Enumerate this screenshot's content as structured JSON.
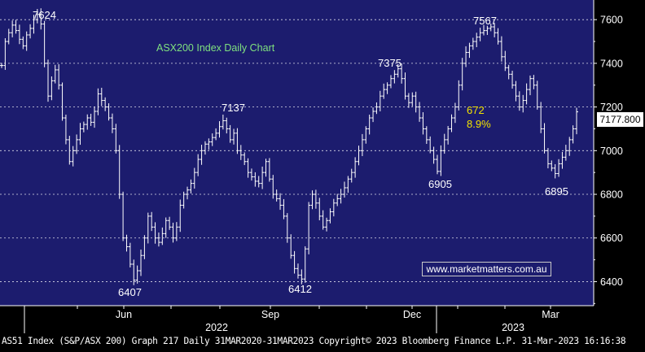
{
  "colors": {
    "plot_background": "#1c1c6e",
    "axis_background": "#000000",
    "grid": "#ffffff",
    "price_bars": "#ffffff",
    "title_text": "#7fe07f",
    "move_annotation": "#f2e200",
    "last_price_bg": "#ffffff"
  },
  "footer": {
    "text": "AS51 Index (S&P/ASX 200) Graph 217  Daily 31MAR2020-31MAR2023 Copyright© 2023 Bloomberg Finance L.P. 31-Mar-2023 16:16:38"
  },
  "watermark": "www.marketmatters.com.au",
  "chart_data": {
    "type": "ohlc",
    "title": "ASX200 Index Daily Chart",
    "y_axis": {
      "position": "right",
      "ticks": [
        6400,
        6600,
        6800,
        7000,
        7200,
        7400,
        7600
      ],
      "ylim": [
        6290,
        7690
      ],
      "grid": "dashed horizontal"
    },
    "x_axis": {
      "month_ticks": [
        "Jun",
        "Sep",
        "Dec",
        "Mar"
      ],
      "year_labels": [
        "2022",
        "2023"
      ]
    },
    "last_price_label": "7177.800",
    "last_price": 7177.8,
    "annotations": {
      "peak_1": "7624",
      "trough_1": "6407",
      "peak_2": "7137",
      "trough_2": "6412",
      "peak_3": "7375",
      "trough_3": "6905",
      "peak_4": "7567",
      "trough_4": "6895",
      "move_points": "672",
      "move_percent": "8.9%"
    },
    "series_approx_closes": [
      7390,
      7500,
      7540,
      7575,
      7550,
      7510,
      7480,
      7530,
      7560,
      7600,
      7624,
      7580,
      7400,
      7250,
      7320,
      7370,
      7300,
      7150,
      7050,
      6950,
      7000,
      7050,
      7100,
      7120,
      7150,
      7130,
      7180,
      7260,
      7230,
      7200,
      7150,
      7100,
      7000,
      6800,
      6600,
      6560,
      6480,
      6407,
      6450,
      6520,
      6600,
      6700,
      6650,
      6600,
      6580,
      6620,
      6680,
      6650,
      6600,
      6650,
      6750,
      6800,
      6820,
      6850,
      6900,
      6960,
      7000,
      7030,
      7040,
      7060,
      7080,
      7110,
      7137,
      7100,
      7050,
      7080,
      7000,
      6980,
      6950,
      6900,
      6880,
      6860,
      6850,
      6900,
      6950,
      6870,
      6800,
      6780,
      6750,
      6700,
      6600,
      6520,
      6460,
      6430,
      6412,
      6550,
      6750,
      6800,
      6760,
      6700,
      6650,
      6680,
      6720,
      6760,
      6780,
      6800,
      6830,
      6870,
      6900,
      6950,
      7000,
      7050,
      7100,
      7150,
      7180,
      7200,
      7250,
      7280,
      7300,
      7330,
      7350,
      7375,
      7330,
      7250,
      7220,
      7250,
      7200,
      7150,
      7100,
      7050,
      7000,
      6960,
      6905,
      7000,
      7050,
      7100,
      7150,
      7200,
      7300,
      7400,
      7450,
      7480,
      7500,
      7520,
      7540,
      7550,
      7560,
      7567,
      7540,
      7500,
      7430,
      7380,
      7350,
      7300,
      7250,
      7200,
      7230,
      7280,
      7330,
      7300,
      7200,
      7100,
      7000,
      6940,
      6920,
      6895,
      6940,
      6970,
      7000,
      7050,
      7100,
      7177.8
    ]
  }
}
